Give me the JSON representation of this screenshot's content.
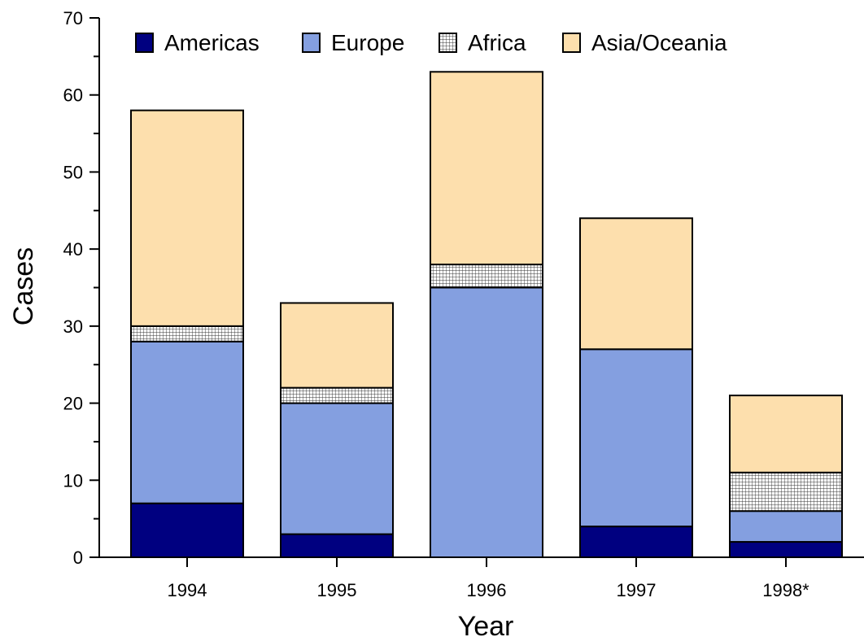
{
  "chart_data": {
    "type": "bar",
    "stacked": true,
    "categories": [
      "1994",
      "1995",
      "1996",
      "1997",
      "1998*"
    ],
    "series": [
      {
        "name": "Americas",
        "color": "#000080",
        "pattern": "solid",
        "values": [
          7,
          3,
          0,
          4,
          2
        ]
      },
      {
        "name": "Europe",
        "color": "#849FE0",
        "pattern": "solid",
        "values": [
          21,
          17,
          35,
          23,
          4
        ]
      },
      {
        "name": "Africa",
        "color": "#ffffff",
        "pattern": "crosshatch-grid",
        "values": [
          2,
          2,
          3,
          0,
          5
        ]
      },
      {
        "name": "Asia/Oceania",
        "color": "#FDDFAD",
        "pattern": "solid",
        "values": [
          28,
          11,
          25,
          17,
          10
        ]
      }
    ],
    "title": "",
    "xlabel": "Year",
    "ylabel": "Cases",
    "ylim": [
      0,
      70
    ],
    "yticks": [
      0,
      10,
      20,
      30,
      40,
      50,
      60,
      70
    ],
    "grid": false,
    "legend_position": "top"
  }
}
